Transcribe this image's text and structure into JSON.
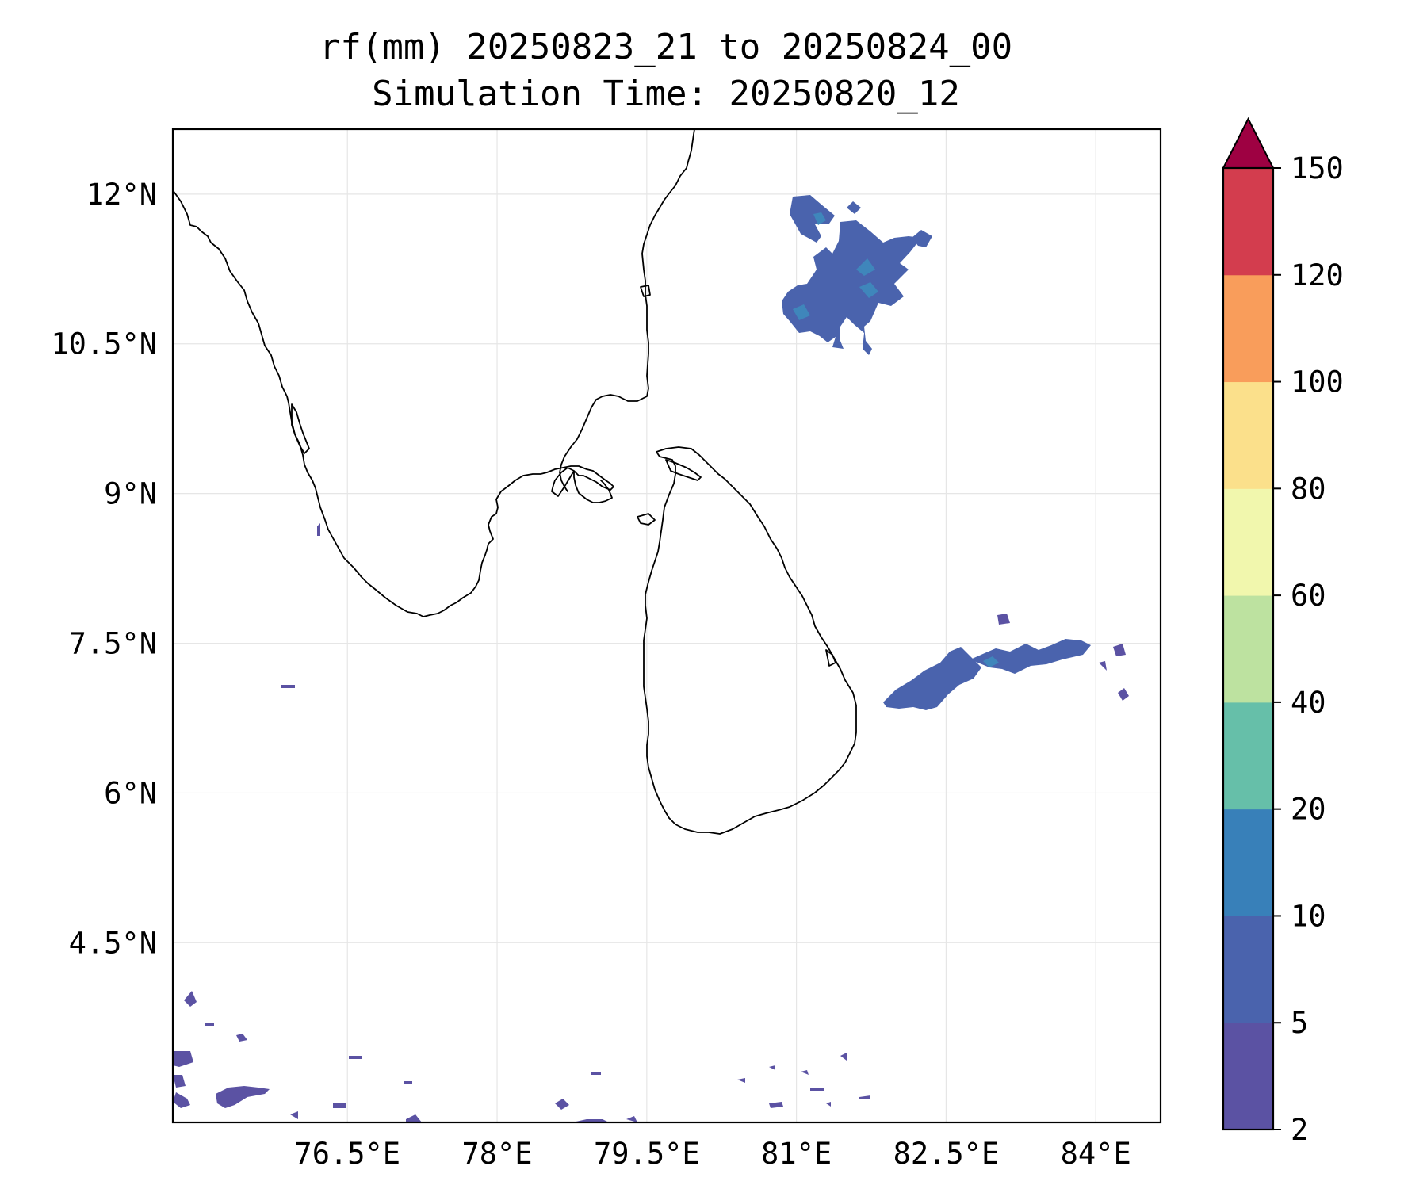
{
  "title": {
    "line1": "rf(mm) 20250823_21 to 20250824_00",
    "line2": "Simulation Time: 20250820_12"
  },
  "map": {
    "lon_range": [
      74.75,
      84.65
    ],
    "lat_range": [
      2.7,
      12.65
    ],
    "x_ticks": [
      {
        "value": 76.5,
        "label": "76.5°E"
      },
      {
        "value": 78.0,
        "label": "78°E"
      },
      {
        "value": 79.5,
        "label": "79.5°E"
      },
      {
        "value": 81.0,
        "label": "81°E"
      },
      {
        "value": 82.5,
        "label": "82.5°E"
      },
      {
        "value": 84.0,
        "label": "84°E"
      }
    ],
    "y_ticks": [
      {
        "value": 12.0,
        "label": "12°N"
      },
      {
        "value": 10.5,
        "label": "10.5°N"
      },
      {
        "value": 9.0,
        "label": "9°N"
      },
      {
        "value": 7.5,
        "label": "7.5°N"
      },
      {
        "value": 6.0,
        "label": "6°N"
      },
      {
        "value": 4.5,
        "label": "4.5°N"
      }
    ],
    "gridlines": true
  },
  "colorbar": {
    "levels": [
      "2",
      "5",
      "10",
      "20",
      "40",
      "60",
      "80",
      "100",
      "120",
      "150"
    ],
    "colors": [
      "#5b52a3",
      "#4a63ad",
      "#3880b9",
      "#66bfa9",
      "#bde2a0",
      "#f1f7ad",
      "#fbe08b",
      "#f99d5b",
      "#d33d4e"
    ],
    "extend_color": "#9e0142",
    "extend": "max"
  },
  "colors": {
    "rain_2_5": "#5b52a3",
    "rain_5_10": "#4a63ad",
    "rain_10_20": "#3f86bb"
  }
}
